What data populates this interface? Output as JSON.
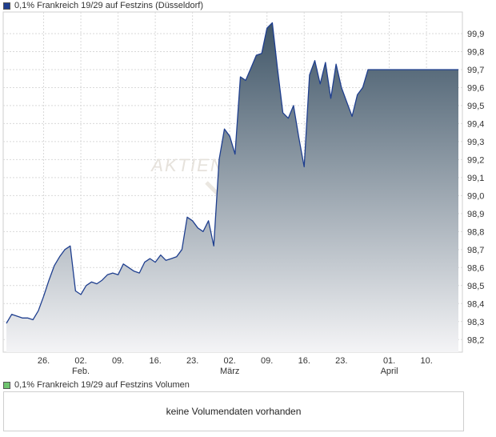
{
  "price_legend": {
    "label": "0,1% Frankreich 19/29 auf Festzins (Düsseldorf)",
    "color": "#1f3f8f"
  },
  "volume_legend": {
    "label": "0,1% Frankreich 19/29 auf Festzins Volumen",
    "color": "#6fc46f"
  },
  "volume_panel": {
    "message": "keine Volumendaten vorhanden"
  },
  "watermark": "AKTIEN",
  "chart_data": {
    "type": "area",
    "title": "0,1% Frankreich 19/29 auf Festzins (Düsseldorf)",
    "ylim": [
      98.13,
      100.02
    ],
    "y_ticks": [
      "99,9",
      "99,8",
      "99,7",
      "99,6",
      "99,5",
      "99,4",
      "99,3",
      "99,2",
      "99,1",
      "99,0",
      "98,9",
      "98,8",
      "98,7",
      "98,6",
      "98,5",
      "98,4",
      "98,3",
      "98,2"
    ],
    "y_tick_values": [
      99.9,
      99.8,
      99.7,
      99.6,
      99.5,
      99.4,
      99.3,
      99.2,
      99.1,
      99.0,
      98.9,
      98.8,
      98.7,
      98.6,
      98.5,
      98.4,
      98.3,
      98.2
    ],
    "x_ticks": [
      {
        "label": "26.",
        "sub": "",
        "x": 7
      },
      {
        "label": "02.",
        "sub": "Feb.",
        "x": 14
      },
      {
        "label": "09.",
        "sub": "",
        "x": 21
      },
      {
        "label": "16.",
        "sub": "",
        "x": 28
      },
      {
        "label": "23.",
        "sub": "",
        "x": 35
      },
      {
        "label": "02.",
        "sub": "März",
        "x": 42
      },
      {
        "label": "09.",
        "sub": "",
        "x": 49
      },
      {
        "label": "16.",
        "sub": "",
        "x": 56
      },
      {
        "label": "23.",
        "sub": "",
        "x": 63
      },
      {
        "label": "01.",
        "sub": "April",
        "x": 72
      },
      {
        "label": "10.",
        "sub": "",
        "x": 79
      }
    ],
    "x_range": [
      0,
      85
    ],
    "grid": true,
    "series": [
      {
        "line_color": "#1f3f8f",
        "fill_top": "#3f5567",
        "fill_bottom": "#f4f4f6",
        "x": [
          0,
          1,
          2,
          3,
          4,
          5,
          6,
          7,
          8,
          9,
          10,
          11,
          12,
          13,
          14,
          15,
          16,
          17,
          18,
          19,
          20,
          21,
          22,
          23,
          24,
          25,
          26,
          27,
          28,
          29,
          30,
          31,
          32,
          33,
          34,
          35,
          36,
          37,
          38,
          39,
          40,
          41,
          42,
          43,
          44,
          45,
          46,
          47,
          48,
          49,
          50,
          51,
          52,
          53,
          54,
          55,
          56,
          57,
          58,
          59,
          60,
          61,
          62,
          63,
          64,
          65,
          66,
          67,
          68,
          69,
          70,
          71,
          72,
          73,
          74,
          75,
          76,
          77,
          78,
          79,
          80,
          81,
          82,
          83,
          84,
          85
        ],
        "values": [
          98.29,
          98.34,
          98.33,
          98.32,
          98.32,
          98.31,
          98.36,
          98.44,
          98.53,
          98.61,
          98.66,
          98.7,
          98.72,
          98.47,
          98.45,
          98.5,
          98.52,
          98.51,
          98.53,
          98.56,
          98.57,
          98.56,
          98.62,
          98.6,
          98.58,
          98.57,
          98.63,
          98.65,
          98.63,
          98.67,
          98.64,
          98.65,
          98.66,
          98.7,
          98.88,
          98.86,
          98.82,
          98.8,
          98.86,
          98.72,
          99.2,
          99.37,
          99.33,
          99.23,
          99.66,
          99.64,
          99.71,
          99.78,
          99.79,
          99.93,
          99.96,
          99.7,
          99.46,
          99.43,
          99.5,
          99.32,
          99.16,
          99.67,
          99.75,
          99.62,
          99.74,
          99.54,
          99.73,
          99.6,
          99.52,
          99.44,
          99.56,
          99.6,
          99.7,
          99.7,
          99.7,
          99.7,
          99.7,
          99.7,
          99.7,
          99.7,
          99.7,
          99.7,
          99.7,
          99.7,
          99.7,
          99.7,
          99.7,
          99.7,
          99.7,
          99.7
        ]
      }
    ]
  }
}
